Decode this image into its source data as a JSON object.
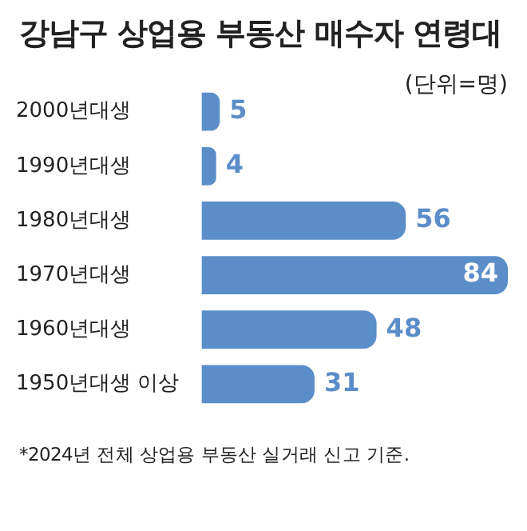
{
  "chart_data": {
    "type": "bar",
    "orientation": "horizontal",
    "title": "강남구 상업용 부동산 매수자 연령대",
    "categories": [
      "2000년대생",
      "1990년대생",
      "1980년대생",
      "1970년대생",
      "1960년대생",
      "1950년대생 이상"
    ],
    "values": [
      5,
      4,
      56,
      84,
      48,
      31
    ],
    "color": "#5b8ec9",
    "data_labels": true,
    "legend": false,
    "tick_labels": "y",
    "annotations": [
      "(단위=명)",
      "*2024년 전체 상업용 부동산 실거래 신고 기준."
    ]
  }
}
